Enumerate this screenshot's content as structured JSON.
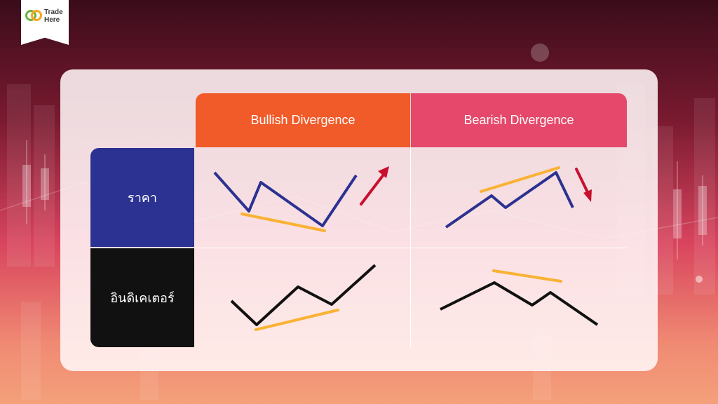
{
  "brand": {
    "line1": "Trade",
    "line2": "Here"
  },
  "columns": {
    "bullish": "Bullish Divergence",
    "bearish": "Bearish Divergence"
  },
  "rows": {
    "price": "ราคา",
    "indicator": "อินดิเคเตอร์"
  },
  "colors": {
    "bullish_header": "#f15a29",
    "bearish_header": "#e5486a",
    "price_row": "#2c3291",
    "indicator_row": "#111111",
    "price_line": "#2c3291",
    "indicator_line": "#111111",
    "trendline": "#f9b233",
    "arrow": "#c8102e"
  },
  "diagram": {
    "bullish_price": {
      "trend": "lower lows",
      "arrow": "up"
    },
    "bullish_indicator": {
      "trend": "higher lows"
    },
    "bearish_price": {
      "trend": "higher highs",
      "arrow": "down"
    },
    "bearish_indicator": {
      "trend": "lower highs"
    }
  }
}
